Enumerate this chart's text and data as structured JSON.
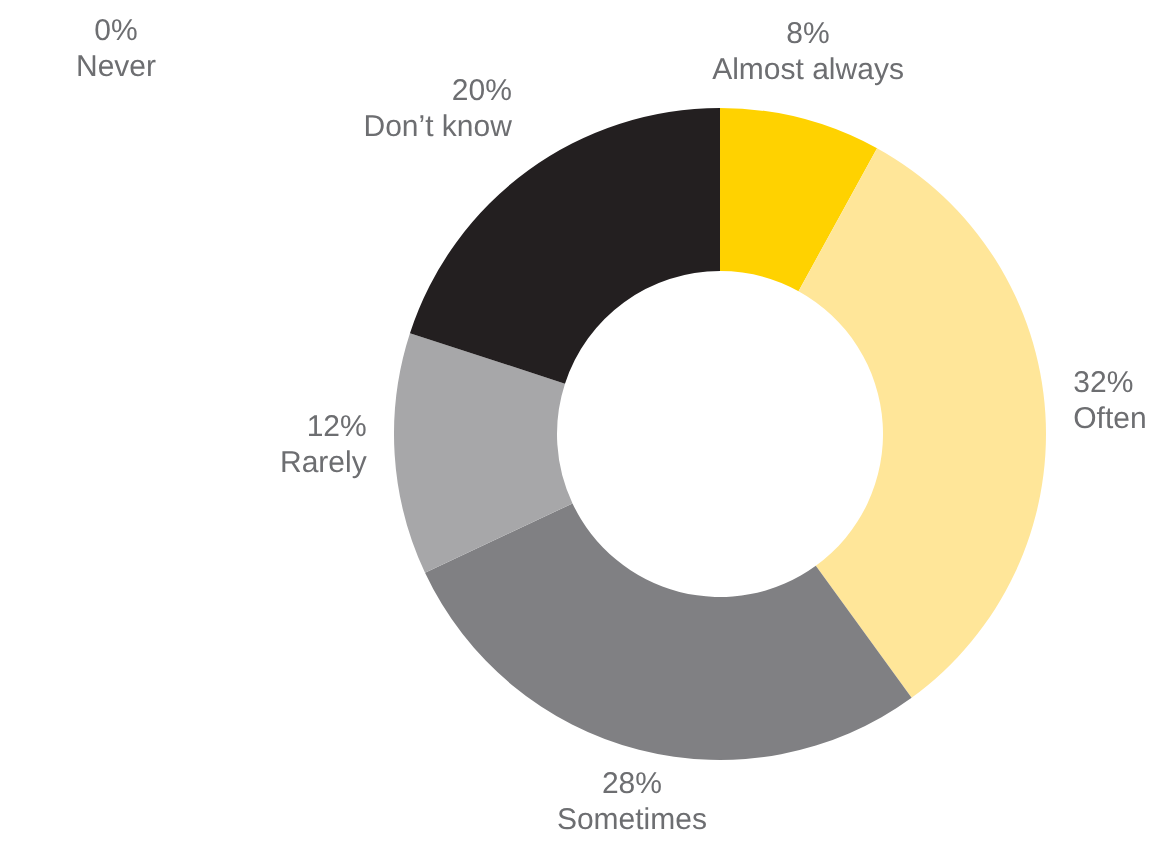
{
  "chart_data": {
    "type": "donut",
    "categories": [
      "Almost always",
      "Often",
      "Sometimes",
      "Rarely",
      "Don’t know",
      "Never"
    ],
    "values": [
      8,
      32,
      28,
      12,
      20,
      0
    ],
    "value_labels": [
      "8%",
      "32%",
      "28%",
      "12%",
      "20%",
      "0%"
    ],
    "colors": [
      "#ffd200",
      "#ffe699",
      "#808083",
      "#a7a7a9",
      "#231f20",
      "#d9d9d9"
    ],
    "legend": false
  }
}
